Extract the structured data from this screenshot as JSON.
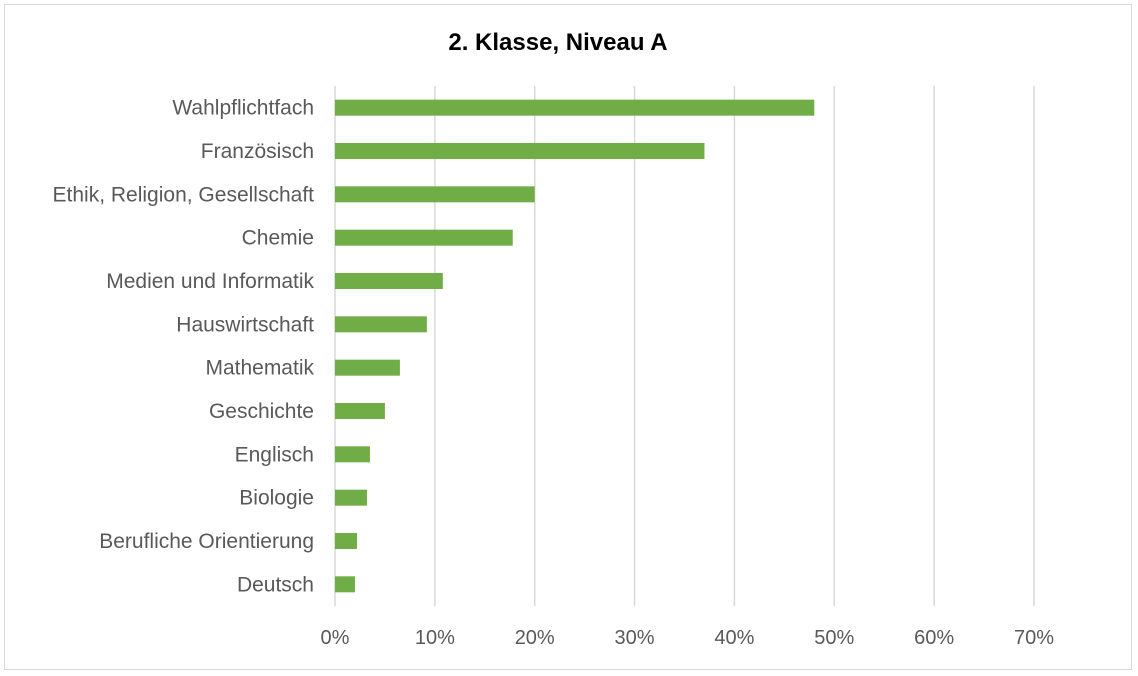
{
  "chart_data": {
    "type": "bar",
    "orientation": "horizontal",
    "title": "2. Klasse, Niveau A",
    "categories": [
      "Wahlpflichtfach",
      "Französisch",
      "Ethik, Religion, Gesellschaft",
      "Chemie",
      "Medien und Informatik",
      "Hauswirtschaft",
      "Mathematik",
      "Geschichte",
      "Englisch",
      "Biologie",
      "Berufliche Orientierung",
      "Deutsch"
    ],
    "values": [
      48,
      37,
      20,
      17.8,
      10.8,
      9.2,
      6.5,
      5,
      3.5,
      3.2,
      2.2,
      2
    ],
    "xlim": [
      0,
      70
    ],
    "xticks": [
      "0%",
      "10%",
      "20%",
      "30%",
      "40%",
      "50%",
      "60%",
      "70%"
    ],
    "grid": "vertical",
    "bar_color": "#70ad47",
    "grid_color": "#d9d9d9"
  }
}
